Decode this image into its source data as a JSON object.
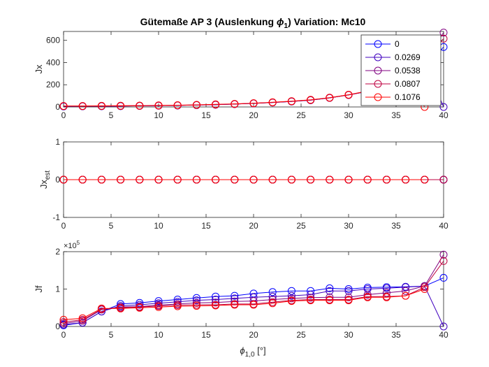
{
  "title": "Gütemaße AP 3 (Auslenkung ϕ1)  Variation: Mc10",
  "title_prefix": "Gütemaße AP 3 (Auslenkung ",
  "title_phi": "ϕ",
  "title_phi_sub": "1",
  "title_suffix": ")  Variation: Mc10",
  "xlabel_main": "ϕ",
  "xlabel_sub": "1,0",
  "xlabel_unit": " [°]",
  "chart_data": [
    {
      "type": "line",
      "ylabel": "Jx",
      "ylabel_sub": "",
      "xlim": [
        0,
        40
      ],
      "ylim": [
        0,
        680
      ],
      "xticks": [
        0,
        5,
        10,
        15,
        20,
        25,
        30,
        35,
        40
      ],
      "yticks": [
        0,
        200,
        400,
        600
      ],
      "ytick_labels": [
        "0",
        "200",
        "400",
        "600"
      ],
      "x": [
        0,
        2,
        4,
        6,
        8,
        10,
        12,
        14,
        16,
        18,
        20,
        22,
        24,
        26,
        28,
        30,
        32,
        34,
        36,
        38,
        40
      ],
      "legend": {
        "position": "top-right",
        "entries": [
          "0",
          "0.0269",
          "0.0538",
          "0.0807",
          "0.1076"
        ]
      },
      "series": [
        {
          "name": "0",
          "color": "#0000ff",
          "values": [
            5,
            6,
            7,
            8,
            10,
            12,
            14,
            17,
            21,
            26,
            32,
            40,
            50,
            62,
            82,
            108,
            140,
            190,
            260,
            350,
            540
          ]
        },
        {
          "name": "0.0269",
          "color": "#4000bf",
          "values": [
            6,
            6,
            7,
            8,
            10,
            12,
            14,
            17,
            21,
            26,
            32,
            40,
            50,
            62,
            82,
            108,
            140,
            190,
            270,
            400,
            0
          ]
        },
        {
          "name": "0.0538",
          "color": "#800080",
          "values": [
            7,
            7,
            8,
            9,
            11,
            12,
            14,
            17,
            21,
            26,
            32,
            40,
            50,
            62,
            82,
            108,
            140,
            195,
            280,
            420,
            670
          ]
        },
        {
          "name": "0.0807",
          "color": "#bf0040",
          "values": [
            8,
            8,
            9,
            10,
            11,
            13,
            15,
            18,
            22,
            27,
            33,
            41,
            51,
            63,
            83,
            109,
            142,
            200,
            290,
            440,
            615
          ]
        },
        {
          "name": "0.1076",
          "color": "#ff0000",
          "values": [
            9,
            9,
            10,
            11,
            12,
            14,
            16,
            19,
            23,
            28,
            34,
            42,
            52,
            64,
            84,
            110,
            143,
            205,
            300,
            0,
            null
          ]
        }
      ]
    },
    {
      "type": "line",
      "ylabel": "Jx",
      "ylabel_sub": "est",
      "xlim": [
        0,
        40
      ],
      "ylim": [
        -1,
        1
      ],
      "xticks": [
        0,
        5,
        10,
        15,
        20,
        25,
        30,
        35,
        40
      ],
      "yticks": [
        -1,
        0,
        1
      ],
      "ytick_labels": [
        "-1",
        "0",
        "1"
      ],
      "x": [
        0,
        2,
        4,
        6,
        8,
        10,
        12,
        14,
        16,
        18,
        20,
        22,
        24,
        26,
        28,
        30,
        32,
        34,
        36,
        38,
        40
      ],
      "series": [
        {
          "name": "0",
          "color": "#0000ff",
          "values": [
            0,
            0,
            0,
            0,
            0,
            0,
            0,
            0,
            0,
            0,
            0,
            0,
            0,
            0,
            0,
            0,
            0,
            0,
            0,
            0,
            0
          ]
        },
        {
          "name": "0.0269",
          "color": "#4000bf",
          "values": [
            0,
            0,
            0,
            0,
            0,
            0,
            0,
            0,
            0,
            0,
            0,
            0,
            0,
            0,
            0,
            0,
            0,
            0,
            0,
            0,
            0
          ]
        },
        {
          "name": "0.0538",
          "color": "#800080",
          "values": [
            0,
            0,
            0,
            0,
            0,
            0,
            0,
            0,
            0,
            0,
            0,
            0,
            0,
            0,
            0,
            0,
            0,
            0,
            0,
            0,
            0
          ]
        },
        {
          "name": "0.0807",
          "color": "#bf0040",
          "values": [
            0,
            0,
            0,
            0,
            0,
            0,
            0,
            0,
            0,
            0,
            0,
            0,
            0,
            0,
            0,
            0,
            0,
            0,
            0,
            0,
            0
          ]
        },
        {
          "name": "0.1076",
          "color": "#ff0000",
          "values": [
            0,
            0,
            0,
            0,
            0,
            0,
            0,
            0,
            0,
            0,
            0,
            0,
            0,
            0,
            0,
            0,
            0,
            0,
            0,
            0,
            null
          ]
        }
      ]
    },
    {
      "type": "line",
      "ylabel": "Jf",
      "ylabel_sub": "",
      "exponent_base": "×10",
      "exponent_power": "5",
      "xlim": [
        0,
        40
      ],
      "ylim": [
        0,
        2
      ],
      "xticks": [
        0,
        5,
        10,
        15,
        20,
        25,
        30,
        35,
        40
      ],
      "yticks": [
        0,
        1,
        2
      ],
      "ytick_labels": [
        "0",
        "1",
        "2"
      ],
      "x": [
        0,
        2,
        4,
        6,
        8,
        10,
        12,
        14,
        16,
        18,
        20,
        22,
        24,
        26,
        28,
        30,
        32,
        34,
        36,
        38,
        40
      ],
      "series": [
        {
          "name": "0",
          "color": "#0000ff",
          "values": [
            0.03,
            0.1,
            0.4,
            0.6,
            0.63,
            0.68,
            0.72,
            0.76,
            0.8,
            0.82,
            0.88,
            0.92,
            0.95,
            0.95,
            1.02,
            1.0,
            1.04,
            1.05,
            1.06,
            1.08,
            1.3
          ]
        },
        {
          "name": "0.0269",
          "color": "#4000bf",
          "values": [
            0.05,
            0.1,
            0.4,
            0.55,
            0.58,
            0.62,
            0.66,
            0.7,
            0.72,
            0.75,
            0.78,
            0.8,
            0.82,
            0.85,
            0.95,
            0.95,
            1.0,
            1.02,
            1.05,
            1.08,
            0
          ]
        },
        {
          "name": "0.0538",
          "color": "#800080",
          "values": [
            0.08,
            0.15,
            0.45,
            0.52,
            0.53,
            0.57,
            0.6,
            0.63,
            0.64,
            0.67,
            0.68,
            0.72,
            0.75,
            0.77,
            0.78,
            0.78,
            0.85,
            0.9,
            0.95,
            1.08,
            1.92
          ]
        },
        {
          "name": "0.0807",
          "color": "#bf0040",
          "values": [
            0.12,
            0.18,
            0.46,
            0.5,
            0.52,
            0.55,
            0.57,
            0.58,
            0.58,
            0.6,
            0.6,
            0.65,
            0.7,
            0.72,
            0.72,
            0.72,
            0.8,
            0.8,
            0.82,
            1.05,
            1.75
          ]
        },
        {
          "name": "0.1076",
          "color": "#ff0000",
          "values": [
            0.18,
            0.22,
            0.48,
            0.48,
            0.5,
            0.52,
            0.54,
            0.55,
            0.56,
            0.58,
            0.58,
            0.62,
            0.68,
            0.7,
            0.7,
            0.7,
            0.78,
            0.78,
            0.82,
            1.0,
            null
          ]
        }
      ],
      "drops": [
        {
          "series": "0.1076",
          "x": 38,
          "from": 1.0,
          "to": 0
        },
        {
          "series": "0.0538",
          "x": 40,
          "from": 1.92,
          "to": 0
        }
      ]
    }
  ]
}
